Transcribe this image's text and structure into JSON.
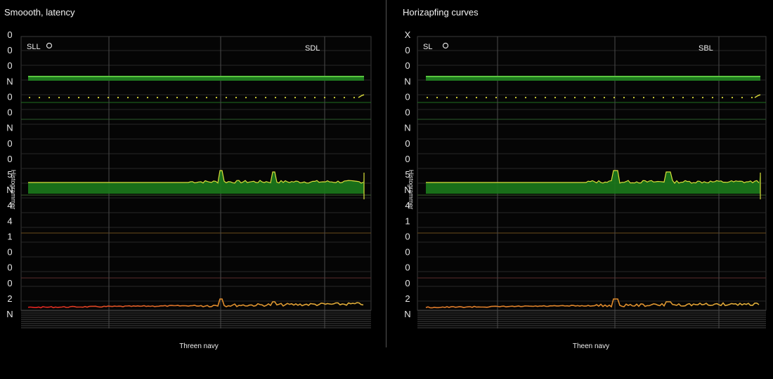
{
  "chart_data": [
    {
      "type": "line",
      "title": "Smoooth, latency",
      "xlabel": "Threen navy",
      "ylabel": "Histogrammer",
      "y_tick_labels": [
        "0",
        "0",
        "0",
        "N",
        "0",
        "0",
        "N",
        "0",
        "0",
        "5",
        "N",
        "4",
        "4",
        "1",
        "0",
        "0",
        "0",
        "2",
        "N"
      ],
      "legend": [
        {
          "label": "SLL",
          "icon": "circle-icon"
        },
        {
          "label": "SDL",
          "icon": ""
        }
      ],
      "grid": true,
      "colors": {
        "green": "#3fbf2a",
        "yellow": "#d9d93a",
        "red": "#e02020",
        "orange": "#e08a2a"
      },
      "series": [
        {
          "name": "SLL",
          "values": [
            1,
            1,
            1,
            1,
            1,
            1,
            1,
            1,
            1,
            1,
            1,
            1,
            1,
            1,
            1,
            1,
            1,
            1,
            1,
            1
          ]
        },
        {
          "name": "SDL",
          "values": [
            2,
            2,
            2,
            2,
            2,
            2,
            2,
            2,
            2,
            2,
            2,
            2,
            2,
            2,
            2,
            2,
            2,
            2,
            2,
            2
          ]
        }
      ]
    },
    {
      "type": "line",
      "title": "Horizapfing curves",
      "xlabel": "Theen navy",
      "ylabel": "Histogrammer",
      "y_tick_labels": [
        "X",
        "0",
        "0",
        "N",
        "0",
        "0",
        "N",
        "0",
        "0",
        "5",
        "N",
        "4",
        "1",
        "0",
        "0",
        "0",
        "0",
        "2",
        "N"
      ],
      "legend": [
        {
          "label": "SL",
          "icon": "circle-icon"
        },
        {
          "label": "SBL",
          "icon": ""
        }
      ],
      "grid": true,
      "colors": {
        "green": "#3fbf2a",
        "yellow": "#d9d93a",
        "orange": "#e08a2a"
      },
      "series": [
        {
          "name": "SL",
          "values": [
            1,
            1,
            1,
            1,
            1,
            1,
            1,
            1,
            1,
            1,
            1,
            1,
            1,
            1,
            1,
            1,
            1,
            1,
            1,
            1
          ]
        },
        {
          "name": "SBL",
          "values": [
            2,
            2,
            2,
            2,
            2,
            2,
            2,
            2,
            2,
            2,
            2,
            2,
            2,
            2,
            2,
            2,
            2,
            2,
            2,
            2
          ]
        }
      ]
    }
  ]
}
